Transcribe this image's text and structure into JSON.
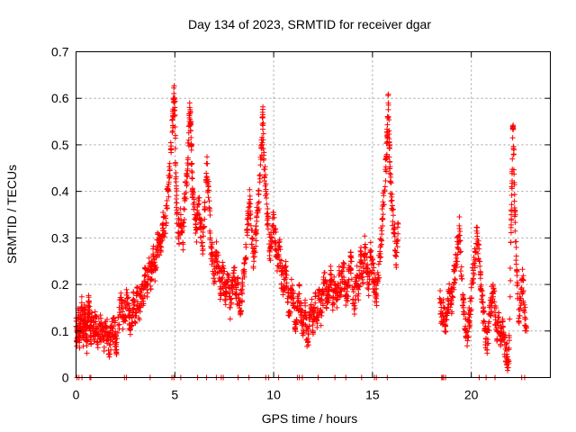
{
  "chart_data": {
    "type": "scatter",
    "title": "Day 134 of 2023, SRMTID for receiver dgar",
    "xlabel": "GPS time / hours",
    "ylabel": "SRMTID / TECUs",
    "xlim": [
      0,
      24
    ],
    "ylim": [
      0,
      0.7
    ],
    "xticks": [
      0,
      5,
      10,
      15,
      20
    ],
    "yticks": [
      0,
      0.1,
      0.2,
      0.3,
      0.4,
      0.5,
      0.6,
      0.7
    ],
    "xtick_labels": [
      "0",
      "5",
      "10",
      "15",
      "20"
    ],
    "ytick_labels": [
      "0",
      "0.1",
      "0.2",
      "0.3",
      "0.4",
      "0.5",
      "0.6",
      "0.7"
    ],
    "grid": true,
    "marker": "+",
    "color": "#ff0000",
    "series": [
      {
        "name": "SRMTID",
        "points": [
          [
            0.0,
            0.11
          ],
          [
            0.05,
            0.08
          ],
          [
            0.1,
            0.13
          ],
          [
            0.15,
            0.1
          ],
          [
            0.2,
            0.09
          ],
          [
            0.25,
            0.12
          ],
          [
            0.3,
            0.15
          ],
          [
            0.35,
            0.09
          ],
          [
            0.4,
            0.11
          ],
          [
            0.45,
            0.14
          ],
          [
            0.5,
            0.1
          ],
          [
            0.55,
            0.08
          ],
          [
            0.6,
            0.12
          ],
          [
            0.65,
            0.16
          ],
          [
            0.7,
            0.11
          ],
          [
            0.75,
            0.09
          ],
          [
            0.8,
            0.13
          ],
          [
            0.9,
            0.1
          ],
          [
            1.0,
            0.12
          ],
          [
            1.1,
            0.09
          ],
          [
            1.2,
            0.11
          ],
          [
            1.3,
            0.1
          ],
          [
            1.4,
            0.08
          ],
          [
            1.5,
            0.12
          ],
          [
            1.6,
            0.09
          ],
          [
            1.7,
            0.07
          ],
          [
            1.8,
            0.1
          ],
          [
            1.9,
            0.11
          ],
          [
            2.0,
            0.09
          ],
          [
            2.05,
            0.06
          ],
          [
            2.2,
            0.14
          ],
          [
            2.3,
            0.16
          ],
          [
            2.4,
            0.12
          ],
          [
            2.5,
            0.15
          ],
          [
            2.6,
            0.17
          ],
          [
            2.7,
            0.13
          ],
          [
            2.8,
            0.11
          ],
          [
            2.9,
            0.16
          ],
          [
            3.0,
            0.14
          ],
          [
            3.1,
            0.18
          ],
          [
            3.2,
            0.15
          ],
          [
            3.3,
            0.19
          ],
          [
            3.4,
            0.17
          ],
          [
            3.5,
            0.22
          ],
          [
            3.6,
            0.2
          ],
          [
            3.7,
            0.24
          ],
          [
            3.8,
            0.21
          ],
          [
            3.9,
            0.26
          ],
          [
            4.0,
            0.23
          ],
          [
            4.1,
            0.28
          ],
          [
            4.2,
            0.3
          ],
          [
            4.3,
            0.27
          ],
          [
            4.4,
            0.33
          ],
          [
            4.5,
            0.31
          ],
          [
            4.6,
            0.38
          ],
          [
            4.7,
            0.42
          ],
          [
            4.8,
            0.49
          ],
          [
            4.9,
            0.56
          ],
          [
            4.95,
            0.61
          ],
          [
            5.0,
            0.58
          ],
          [
            5.05,
            0.44
          ],
          [
            5.1,
            0.36
          ],
          [
            5.2,
            0.31
          ],
          [
            5.3,
            0.35
          ],
          [
            5.4,
            0.29
          ],
          [
            5.5,
            0.38
          ],
          [
            5.6,
            0.42
          ],
          [
            5.7,
            0.51
          ],
          [
            5.75,
            0.59
          ],
          [
            5.8,
            0.55
          ],
          [
            5.85,
            0.46
          ],
          [
            5.9,
            0.4
          ],
          [
            6.0,
            0.35
          ],
          [
            6.1,
            0.32
          ],
          [
            6.2,
            0.38
          ],
          [
            6.3,
            0.33
          ],
          [
            6.4,
            0.29
          ],
          [
            6.5,
            0.34
          ],
          [
            6.6,
            0.46
          ],
          [
            6.7,
            0.41
          ],
          [
            6.8,
            0.3
          ],
          [
            6.9,
            0.25
          ],
          [
            7.0,
            0.22
          ],
          [
            7.1,
            0.27
          ],
          [
            7.2,
            0.24
          ],
          [
            7.3,
            0.19
          ],
          [
            7.4,
            0.23
          ],
          [
            7.5,
            0.2
          ],
          [
            7.6,
            0.18
          ],
          [
            7.7,
            0.22
          ],
          [
            7.8,
            0.15
          ],
          [
            7.9,
            0.19
          ],
          [
            8.0,
            0.23
          ],
          [
            8.1,
            0.17
          ],
          [
            8.2,
            0.2
          ],
          [
            8.3,
            0.14
          ],
          [
            8.4,
            0.18
          ],
          [
            8.5,
            0.22
          ],
          [
            8.6,
            0.28
          ],
          [
            8.7,
            0.34
          ],
          [
            8.8,
            0.39
          ],
          [
            8.9,
            0.3
          ],
          [
            9.0,
            0.25
          ],
          [
            9.1,
            0.31
          ],
          [
            9.2,
            0.36
          ],
          [
            9.3,
            0.42
          ],
          [
            9.4,
            0.5
          ],
          [
            9.45,
            0.56
          ],
          [
            9.5,
            0.47
          ],
          [
            9.6,
            0.4
          ],
          [
            9.7,
            0.33
          ],
          [
            9.8,
            0.27
          ],
          [
            9.9,
            0.3
          ],
          [
            10.0,
            0.35
          ],
          [
            10.1,
            0.29
          ],
          [
            10.2,
            0.24
          ],
          [
            10.3,
            0.28
          ],
          [
            10.4,
            0.22
          ],
          [
            10.5,
            0.19
          ],
          [
            10.6,
            0.23
          ],
          [
            10.7,
            0.17
          ],
          [
            10.8,
            0.14
          ],
          [
            10.9,
            0.19
          ],
          [
            11.0,
            0.16
          ],
          [
            11.1,
            0.12
          ],
          [
            11.2,
            0.15
          ],
          [
            11.3,
            0.18
          ],
          [
            11.4,
            0.13
          ],
          [
            11.5,
            0.1
          ],
          [
            11.6,
            0.14
          ],
          [
            11.7,
            0.08
          ],
          [
            11.8,
            0.11
          ],
          [
            11.9,
            0.15
          ],
          [
            12.0,
            0.12
          ],
          [
            12.1,
            0.16
          ],
          [
            12.2,
            0.13
          ],
          [
            12.3,
            0.17
          ],
          [
            12.4,
            0.14
          ],
          [
            12.5,
            0.18
          ],
          [
            12.6,
            0.21
          ],
          [
            12.7,
            0.16
          ],
          [
            12.8,
            0.19
          ],
          [
            12.9,
            0.23
          ],
          [
            13.0,
            0.17
          ],
          [
            13.1,
            0.2
          ],
          [
            13.2,
            0.15
          ],
          [
            13.3,
            0.22
          ],
          [
            13.4,
            0.19
          ],
          [
            13.5,
            0.24
          ],
          [
            13.6,
            0.2
          ],
          [
            13.7,
            0.17
          ],
          [
            13.8,
            0.21
          ],
          [
            13.9,
            0.25
          ],
          [
            14.0,
            0.19
          ],
          [
            14.1,
            0.16
          ],
          [
            14.2,
            0.22
          ],
          [
            14.3,
            0.18
          ],
          [
            14.4,
            0.26
          ],
          [
            14.5,
            0.21
          ],
          [
            14.6,
            0.28
          ],
          [
            14.7,
            0.24
          ],
          [
            14.8,
            0.19
          ],
          [
            14.9,
            0.27
          ],
          [
            15.0,
            0.23
          ],
          [
            15.1,
            0.2
          ],
          [
            15.2,
            0.17
          ],
          [
            15.3,
            0.22
          ],
          [
            15.4,
            0.28
          ],
          [
            15.5,
            0.34
          ],
          [
            15.6,
            0.4
          ],
          [
            15.7,
            0.47
          ],
          [
            15.75,
            0.52
          ],
          [
            15.8,
            0.59
          ],
          [
            15.85,
            0.5
          ],
          [
            15.9,
            0.42
          ],
          [
            16.0,
            0.36
          ],
          [
            16.1,
            0.31
          ],
          [
            16.2,
            0.26
          ],
          [
            16.3,
            0.33
          ],
          [
            18.4,
            0.17
          ],
          [
            18.5,
            0.13
          ],
          [
            18.6,
            0.15
          ],
          [
            18.7,
            0.11
          ],
          [
            18.8,
            0.14
          ],
          [
            18.9,
            0.18
          ],
          [
            19.0,
            0.16
          ],
          [
            19.1,
            0.2
          ],
          [
            19.2,
            0.24
          ],
          [
            19.3,
            0.28
          ],
          [
            19.4,
            0.32
          ],
          [
            19.5,
            0.22
          ],
          [
            19.6,
            0.15
          ],
          [
            19.7,
            0.11
          ],
          [
            19.8,
            0.09
          ],
          [
            19.9,
            0.13
          ],
          [
            20.0,
            0.17
          ],
          [
            20.1,
            0.23
          ],
          [
            20.2,
            0.27
          ],
          [
            20.3,
            0.31
          ],
          [
            20.4,
            0.25
          ],
          [
            20.5,
            0.19
          ],
          [
            20.6,
            0.14
          ],
          [
            20.7,
            0.1
          ],
          [
            20.8,
            0.07
          ],
          [
            20.9,
            0.12
          ],
          [
            21.0,
            0.16
          ],
          [
            21.1,
            0.2
          ],
          [
            21.2,
            0.14
          ],
          [
            21.3,
            0.1
          ],
          [
            21.4,
            0.13
          ],
          [
            21.5,
            0.08
          ],
          [
            21.6,
            0.11
          ],
          [
            21.7,
            0.07
          ],
          [
            21.8,
            0.05
          ],
          [
            21.9,
            0.03
          ],
          [
            22.0,
            0.29
          ],
          [
            22.05,
            0.41
          ],
          [
            22.1,
            0.54
          ],
          [
            22.15,
            0.48
          ],
          [
            22.2,
            0.36
          ],
          [
            22.3,
            0.23
          ],
          [
            22.4,
            0.12
          ],
          [
            22.5,
            0.17
          ],
          [
            22.6,
            0.21
          ],
          [
            22.7,
            0.14
          ],
          [
            22.8,
            0.1
          ]
        ]
      }
    ],
    "zero_points_x": [
      0.05,
      0.15,
      0.3,
      0.7,
      0.75,
      2.45,
      2.55,
      3.75,
      4.85,
      4.95,
      5.3,
      6.15,
      6.6,
      7.1,
      7.35,
      7.45,
      8.2,
      8.75,
      9.6,
      9.75,
      10.25,
      11.2,
      11.3,
      11.45,
      12.25,
      13.1,
      13.65,
      14.45,
      15.1,
      15.2,
      15.75,
      18.5,
      18.55,
      18.6,
      18.7,
      20.4,
      20.75,
      21.2,
      22.55,
      22.7
    ]
  }
}
